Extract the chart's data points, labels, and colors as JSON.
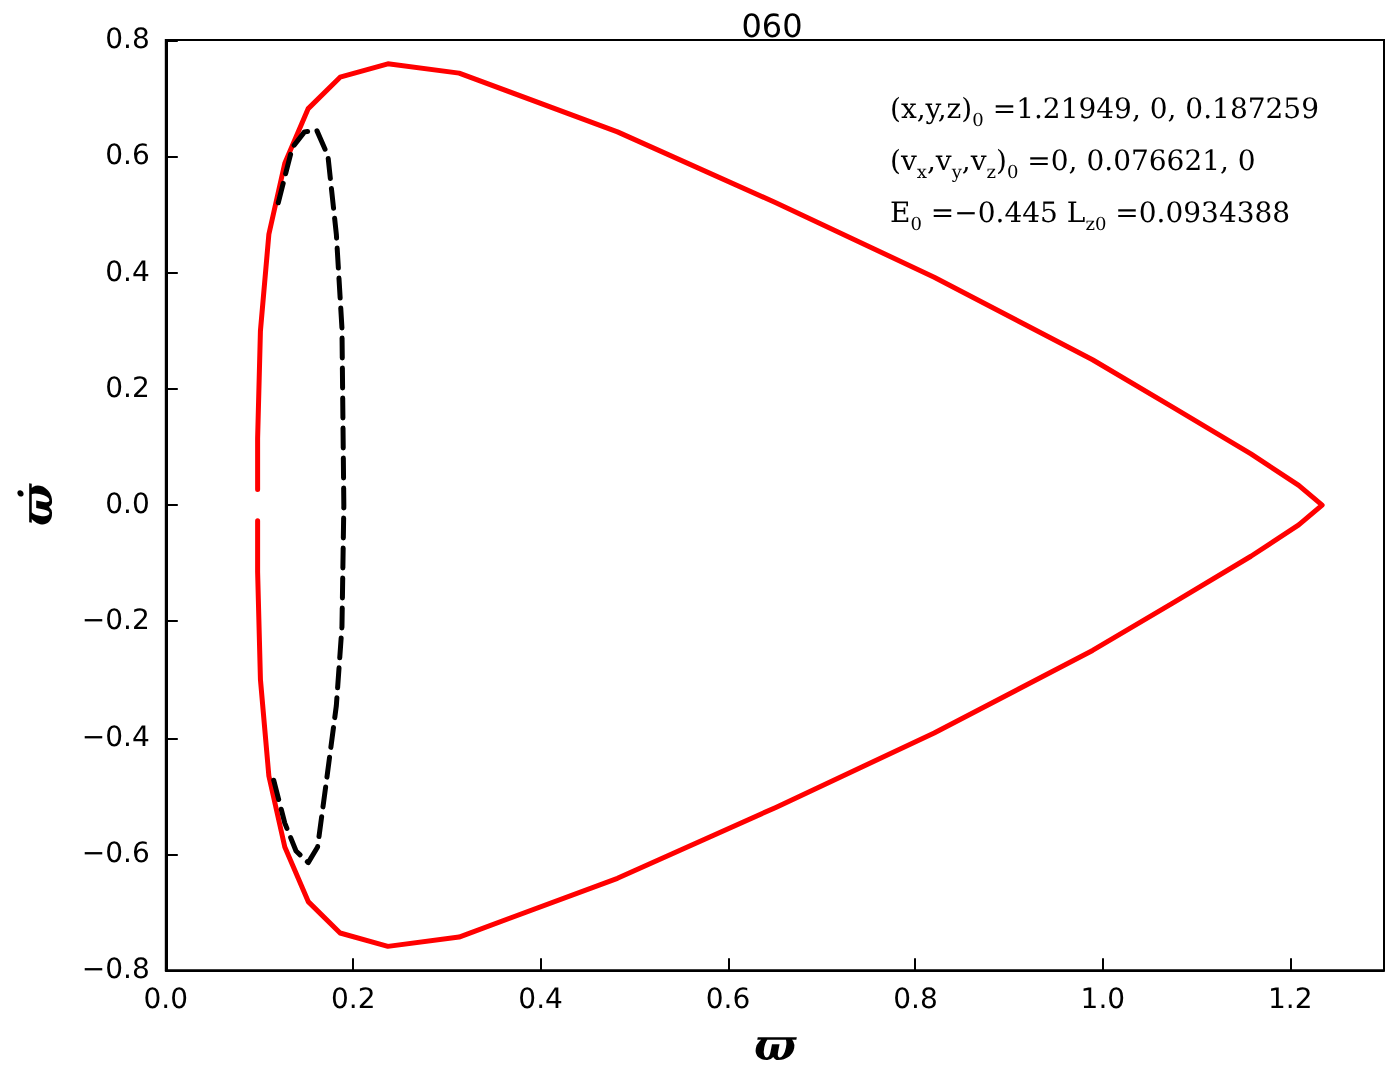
{
  "chart_data": {
    "type": "line",
    "title": "060",
    "xlabel": "ϖ",
    "ylabel": "ϖ̇",
    "xlim": [
      0,
      1.3
    ],
    "ylim": [
      -0.8,
      0.8
    ],
    "xticks": [
      {
        "value": 0,
        "label": "0.0"
      },
      {
        "value": 0.2,
        "label": "0.2"
      },
      {
        "value": 0.4,
        "label": "0.4"
      },
      {
        "value": 0.6,
        "label": "0.6"
      },
      {
        "value": 0.8,
        "label": "0.8"
      },
      {
        "value": 1.0,
        "label": "1.0"
      },
      {
        "value": 1.2,
        "label": "1.2"
      }
    ],
    "yticks": [
      {
        "value": -0.8,
        "label": "−0.8"
      },
      {
        "value": -0.6,
        "label": "−0.6"
      },
      {
        "value": -0.4,
        "label": "−0.4"
      },
      {
        "value": -0.2,
        "label": "−0.2"
      },
      {
        "value": 0,
        "label": "0.0"
      },
      {
        "value": 0.2,
        "label": "0.2"
      },
      {
        "value": 0.4,
        "label": "0.4"
      },
      {
        "value": 0.6,
        "label": "0.6"
      },
      {
        "value": 0.8,
        "label": "0.8"
      }
    ],
    "grid": false,
    "marker": "none",
    "series": [
      {
        "color": "#ff0000",
        "line_style": "solid",
        "x": [
          0.098,
          0.098,
          0.101,
          0.11,
          0.127,
          0.152,
          0.186,
          0.237,
          0.313,
          0.482,
          0.651,
          0.82,
          0.989,
          1.074,
          1.158,
          1.209,
          1.234,
          1.209,
          1.158,
          1.074,
          0.989,
          0.82,
          0.651,
          0.482,
          0.313,
          0.237,
          0.186,
          0.152,
          0.127,
          0.11,
          0.101,
          0.098,
          0.098
        ],
        "values": [
          0.027,
          0.115,
          0.3,
          0.466,
          0.588,
          0.682,
          0.736,
          0.759,
          0.743,
          0.642,
          0.52,
          0.392,
          0.25,
          0.169,
          0.088,
          0.034,
          0,
          -0.034,
          -0.088,
          -0.169,
          -0.25,
          -0.392,
          -0.52,
          -0.642,
          -0.743,
          -0.759,
          -0.736,
          -0.682,
          -0.588,
          -0.466,
          -0.3,
          -0.115,
          -0.027
        ]
      },
      {
        "color": "#000000",
        "line_style": "dashed",
        "x": [
          0.12,
          0.135,
          0.148,
          0.161,
          0.173,
          0.182,
          0.188,
          0.19,
          0.188,
          0.182,
          0.171,
          0.162,
          0.152,
          0.139,
          0.127,
          0.114
        ],
        "values": [
          0.52,
          0.615,
          0.642,
          0.645,
          0.601,
          0.466,
          0.304,
          0,
          -0.209,
          -0.345,
          -0.48,
          -0.588,
          -0.615,
          -0.595,
          -0.547,
          -0.466
        ]
      }
    ],
    "annotations": [
      "(x,y,z)$_{0}$ =1.21949, 0, 0.187259",
      "(v$_{x}$,v$_{y}$,v$_{z}$)$_{0}$ =0, 0.076621, 0",
      "E$_{0}$ =−0.445  L$_{z0}$ =0.0934388"
    ]
  }
}
